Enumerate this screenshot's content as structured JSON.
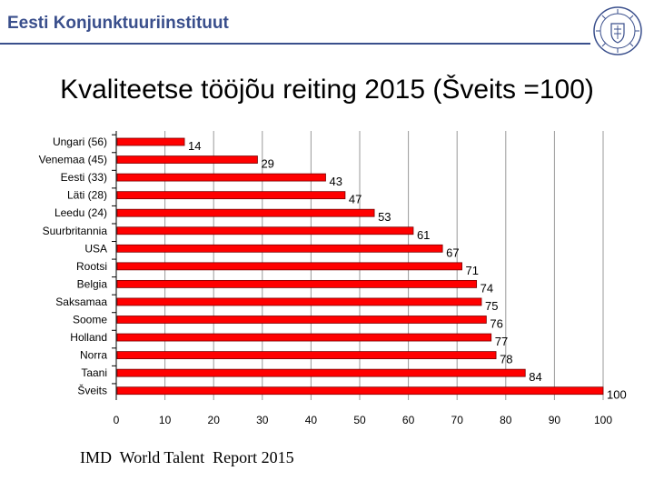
{
  "header": {
    "org_name": "Eesti Konjunktuuriinstituut",
    "accent_color": "#3a4f8c",
    "logo_icon": "university-seal-icon"
  },
  "slide": {
    "title": "Kvaliteetse tööjõu reiting 2015 (Šveits =100)",
    "source": "IMD  World Talent  Report 2015"
  },
  "chart_data": {
    "type": "bar",
    "orientation": "horizontal",
    "title": "",
    "xlabel": "",
    "ylabel": "",
    "bar_color": "#ff0000",
    "xlim": [
      0,
      100
    ],
    "xticks": [
      0,
      10,
      20,
      30,
      40,
      50,
      60,
      70,
      80,
      90,
      100
    ],
    "grid": "vertical",
    "categories": [
      "Ungari (56)",
      "Venemaa (45)",
      "Eesti (33)",
      "Läti (28)",
      "Leedu (24)",
      "Suurbritannia",
      "USA",
      "Rootsi",
      "Belgia",
      "Saksamaa",
      "Soome",
      "Holland",
      "Norra",
      "Taani",
      "Šveits"
    ],
    "values": [
      14,
      29,
      43,
      47,
      53,
      61,
      67,
      71,
      74,
      75,
      76,
      77,
      78,
      84,
      100
    ]
  }
}
